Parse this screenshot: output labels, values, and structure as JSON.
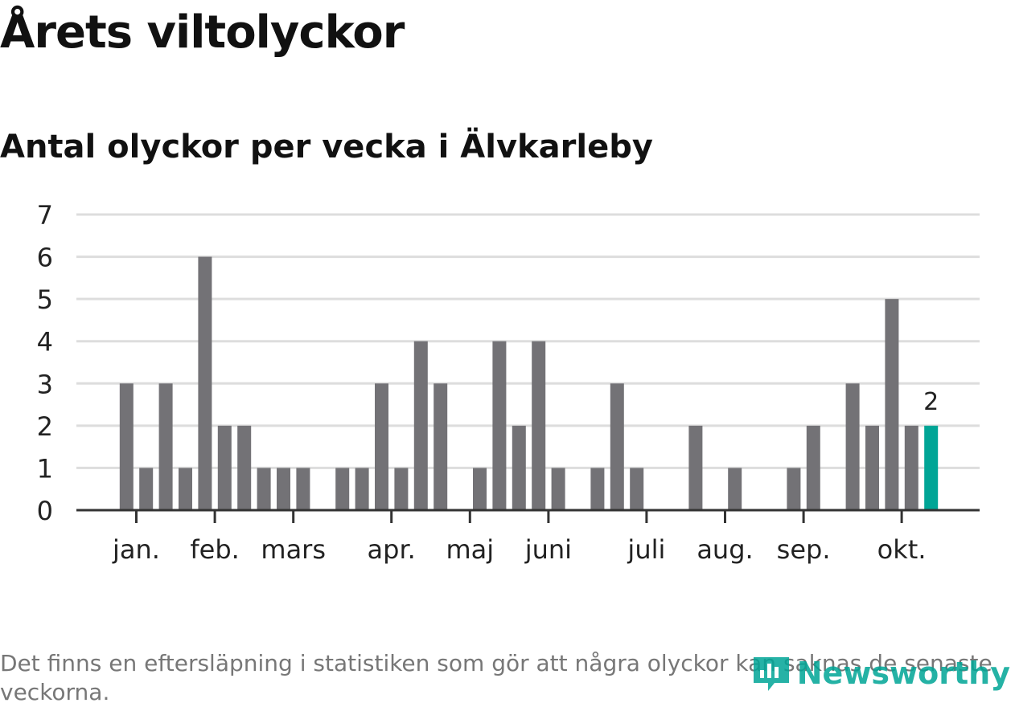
{
  "title": "Årets viltolyckor",
  "subtitle": "Antal olyckor per vecka i Älvkarleby",
  "note": "Det finns en eftersläpning i statistiken som gör att några olyckor kan saknas de senaste veckorna.",
  "brand": {
    "name": "Newsworthy",
    "icon": "newsworthy-logo-icon",
    "color": "#00a596"
  },
  "colors": {
    "bar": "#737276",
    "highlight": "#00a596",
    "grid": "#dddddd",
    "axis": "#333333"
  },
  "chart_data": {
    "type": "bar",
    "ylim": [
      0,
      7
    ],
    "yticks": [
      0,
      1,
      2,
      3,
      4,
      5,
      6,
      7
    ],
    "grid": true,
    "weeks": [
      1,
      2,
      3,
      4,
      5,
      6,
      7,
      8,
      9,
      10,
      11,
      12,
      13,
      14,
      15,
      16,
      17,
      18,
      19,
      20,
      21,
      22,
      23,
      24,
      25,
      26,
      27,
      28,
      29,
      30,
      31,
      32,
      33,
      34,
      35,
      36,
      37,
      38,
      39,
      40,
      41,
      42,
      43,
      44
    ],
    "values": [
      0,
      0,
      3,
      1,
      3,
      1,
      6,
      2,
      2,
      1,
      1,
      1,
      0,
      1,
      1,
      3,
      1,
      4,
      3,
      0,
      1,
      4,
      2,
      4,
      1,
      0,
      1,
      3,
      1,
      0,
      0,
      2,
      0,
      1,
      0,
      0,
      1,
      2,
      0,
      3,
      2,
      5,
      2,
      2
    ],
    "highlight_index": 43,
    "highlight_label": "2",
    "month_ticks": [
      {
        "label": "jan.",
        "week": 3.5
      },
      {
        "label": "feb.",
        "week": 7.5
      },
      {
        "label": "mars",
        "week": 11.5
      },
      {
        "label": "apr.",
        "week": 16.5
      },
      {
        "label": "maj",
        "week": 20.5
      },
      {
        "label": "juni",
        "week": 24.5
      },
      {
        "label": "juli",
        "week": 29.5
      },
      {
        "label": "aug.",
        "week": 33.5
      },
      {
        "label": "sep.",
        "week": 37.5
      },
      {
        "label": "okt.",
        "week": 42.5
      }
    ]
  }
}
